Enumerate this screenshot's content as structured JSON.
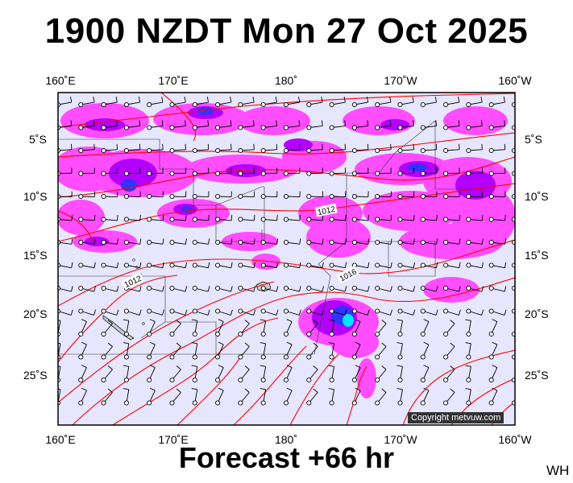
{
  "title": "1900 NZDT Mon 27 Oct 2025",
  "subtitle": "Forecast +66 hr",
  "corner_label": "WH",
  "copyright": "Copyright metvuw.com",
  "longitudes": {
    "top": [
      "160˚E",
      "170˚E",
      "180˚",
      "170˚W",
      "160˚W"
    ],
    "bottom": [
      "160˚E",
      "170˚E",
      "180˚",
      "170˚W",
      "160˚W"
    ]
  },
  "latitudes": {
    "left": [
      "5˚S",
      "10˚S",
      "15˚S",
      "20˚S",
      "25˚S"
    ],
    "right": [
      "5˚S",
      "10˚S",
      "15˚S",
      "20˚S",
      "25˚S"
    ]
  },
  "isobar_labels": [
    "1012",
    "1012",
    "1016"
  ],
  "colors": {
    "background": "#e6e6ff",
    "precip_light": "#ff4dff",
    "precip_medium": "#b300ff",
    "precip_heavy": "#3333ff",
    "precip_extreme": "#00e5ff",
    "isobar": "#ff0000",
    "coastline": "#000000"
  }
}
